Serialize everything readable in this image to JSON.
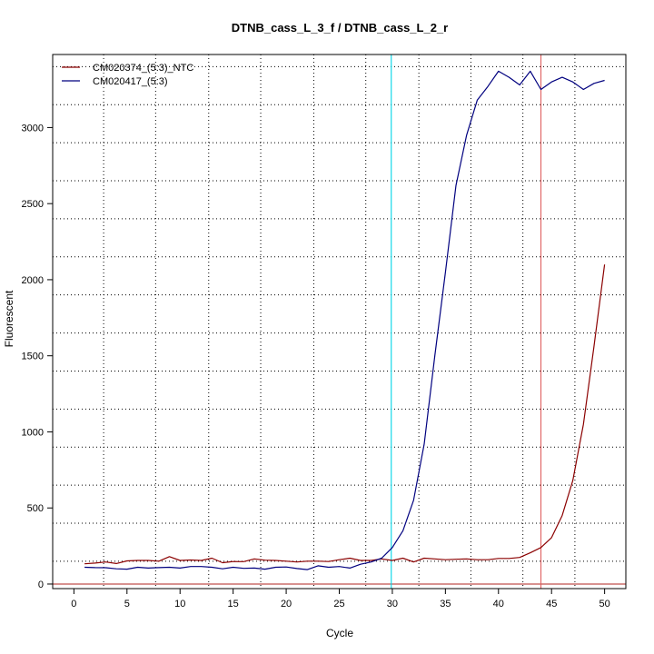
{
  "chart_data": {
    "type": "line",
    "title": "DTNB_cass_L_3_f / DTNB_cass_L_2_r",
    "xlabel": "Cycle",
    "ylabel": "Fluorescent",
    "xlim": [
      -2,
      52
    ],
    "ylim": [
      -30,
      3480
    ],
    "x_ticks": [
      0,
      5,
      10,
      15,
      20,
      25,
      30,
      35,
      40,
      45,
      50
    ],
    "y_ticks": [
      0,
      500,
      1000,
      1500,
      2000,
      2500,
      3000
    ],
    "grid": true,
    "grid_x": [
      2.8,
      7.7,
      12.7,
      17.6,
      22.6,
      27.5,
      32.5,
      37.4,
      42.3,
      47.2
    ],
    "grid_y": [
      150,
      400,
      650,
      900,
      1150,
      1400,
      1650,
      1900,
      2150,
      2400,
      2650,
      2900,
      3150,
      3400
    ],
    "legend_position": "top-left",
    "baseline": {
      "value": 0,
      "color": "#c0504d"
    },
    "vertical_lines": [
      {
        "x": 29.9,
        "color": "#00d5e6"
      },
      {
        "x": 44,
        "color": "#e06060"
      }
    ],
    "x": [
      1,
      2,
      3,
      4,
      5,
      6,
      7,
      8,
      9,
      10,
      11,
      12,
      13,
      14,
      15,
      16,
      17,
      18,
      19,
      20,
      21,
      22,
      23,
      24,
      25,
      26,
      27,
      28,
      29,
      30,
      31,
      32,
      33,
      34,
      35,
      36,
      37,
      38,
      39,
      40,
      41,
      42,
      43,
      44,
      45,
      46,
      47,
      48,
      49,
      50
    ],
    "series": [
      {
        "name": "CM020374_(5:3)_NTC",
        "color": "#8b0000",
        "values": [
          133,
          138,
          145,
          135,
          152,
          155,
          155,
          150,
          180,
          155,
          158,
          155,
          170,
          140,
          148,
          147,
          165,
          157,
          155,
          150,
          145,
          150,
          150,
          148,
          160,
          170,
          155,
          155,
          165,
          155,
          170,
          145,
          170,
          165,
          160,
          163,
          165,
          160,
          160,
          168,
          168,
          175,
          205,
          240,
          305,
          450,
          680,
          1050,
          1560,
          2100
        ]
      },
      {
        "name": "CM020417_(5:3)",
        "color": "#00007f",
        "values": [
          110,
          108,
          107,
          100,
          98,
          110,
          105,
          108,
          110,
          105,
          115,
          115,
          110,
          100,
          110,
          103,
          105,
          98,
          110,
          112,
          102,
          95,
          120,
          110,
          115,
          105,
          130,
          145,
          170,
          240,
          350,
          550,
          920,
          1500,
          2050,
          2620,
          2950,
          3180,
          3270,
          3370,
          3330,
          3280,
          3370,
          3250,
          3300,
          3330,
          3300,
          3250,
          3290,
          3310
        ]
      }
    ]
  }
}
